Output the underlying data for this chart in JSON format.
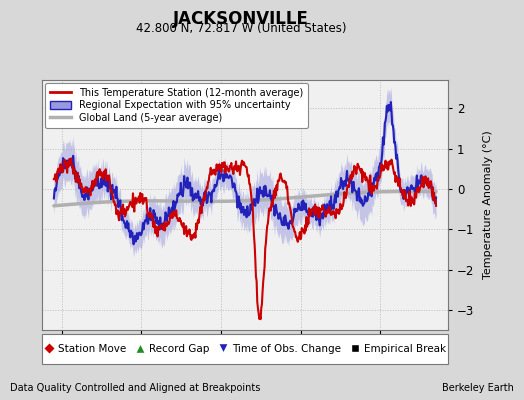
{
  "title": "JACKSONVILLE",
  "subtitle": "42.800 N, 72.817 W (United States)",
  "ylabel": "Temperature Anomaly (°C)",
  "xlabel_note": "Data Quality Controlled and Aligned at Breakpoints",
  "source_note": "Berkeley Earth",
  "xlim": [
    1877.5,
    1928.5
  ],
  "ylim": [
    -3.5,
    2.7
  ],
  "yticks": [
    -3,
    -2,
    -1,
    0,
    1,
    2
  ],
  "xticks": [
    1880,
    1890,
    1900,
    1910,
    1920
  ],
  "bg_color": "#d8d8d8",
  "plot_bg_color": "#f0f0f0",
  "regional_color": "#2222bb",
  "regional_fill_color": "#9999dd",
  "station_color": "#cc0000",
  "global_color": "#b0b0b0",
  "global_linewidth": 2.5,
  "station_linewidth": 1.5,
  "regional_linewidth": 1.5,
  "seed": 12345,
  "x_start": 1879.0,
  "x_end": 1927.0,
  "n_points": 576
}
